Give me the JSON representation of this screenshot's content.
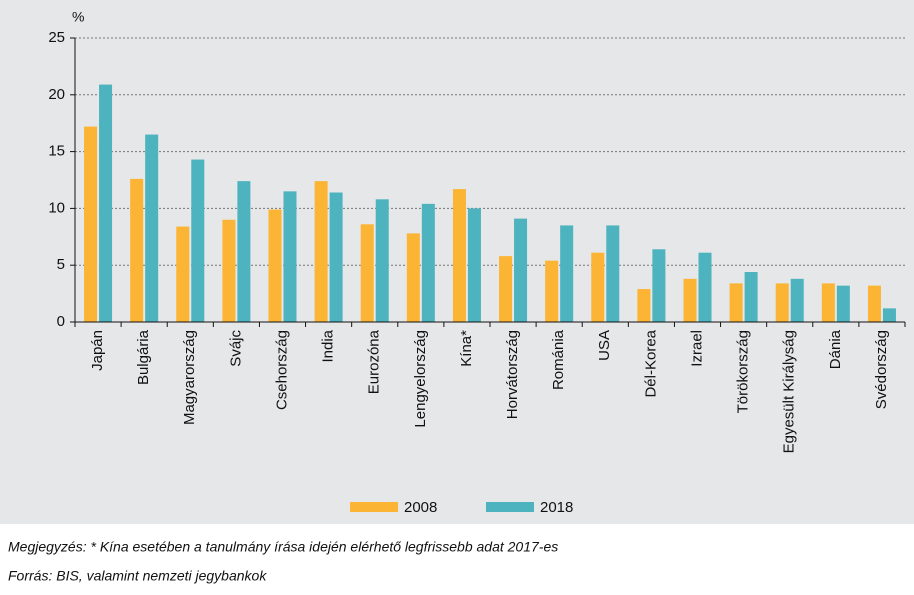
{
  "chart_data": {
    "type": "bar",
    "y_label": "%",
    "categories": [
      "Japán",
      "Bulgária",
      "Magyarország",
      "Svájc",
      "Csehország",
      "India",
      "Eurozóna",
      "Lengyelország",
      "Kína*",
      "Horvátország",
      "Románia",
      "USA",
      "Dél-Korea",
      "Izrael",
      "Törökország",
      "Egyesült Királyság",
      "Dánia",
      "Svédország"
    ],
    "series": [
      {
        "name": "2008",
        "color": "#fbb434",
        "values": [
          17.2,
          12.6,
          8.4,
          9.0,
          9.9,
          12.4,
          8.6,
          7.8,
          11.7,
          5.8,
          5.4,
          6.1,
          2.9,
          3.8,
          3.4,
          3.4,
          3.4,
          3.2
        ]
      },
      {
        "name": "2018",
        "color": "#4db3be",
        "values": [
          20.9,
          16.5,
          14.3,
          12.4,
          11.5,
          11.4,
          10.8,
          10.4,
          10.0,
          9.1,
          8.5,
          8.5,
          6.4,
          6.1,
          4.4,
          3.8,
          3.2,
          1.2
        ]
      }
    ],
    "ylim": [
      0,
      25
    ],
    "yticks": [
      0,
      5,
      10,
      15,
      20,
      25
    ],
    "grid": true,
    "legend": "bottom"
  },
  "notes": [
    "Megjegyzés: * Kína esetében a tanulmány írása idején elérhető legfrissebb adat 2017-es",
    "Forrás: BIS, valamint nemzeti jegybankok"
  ]
}
